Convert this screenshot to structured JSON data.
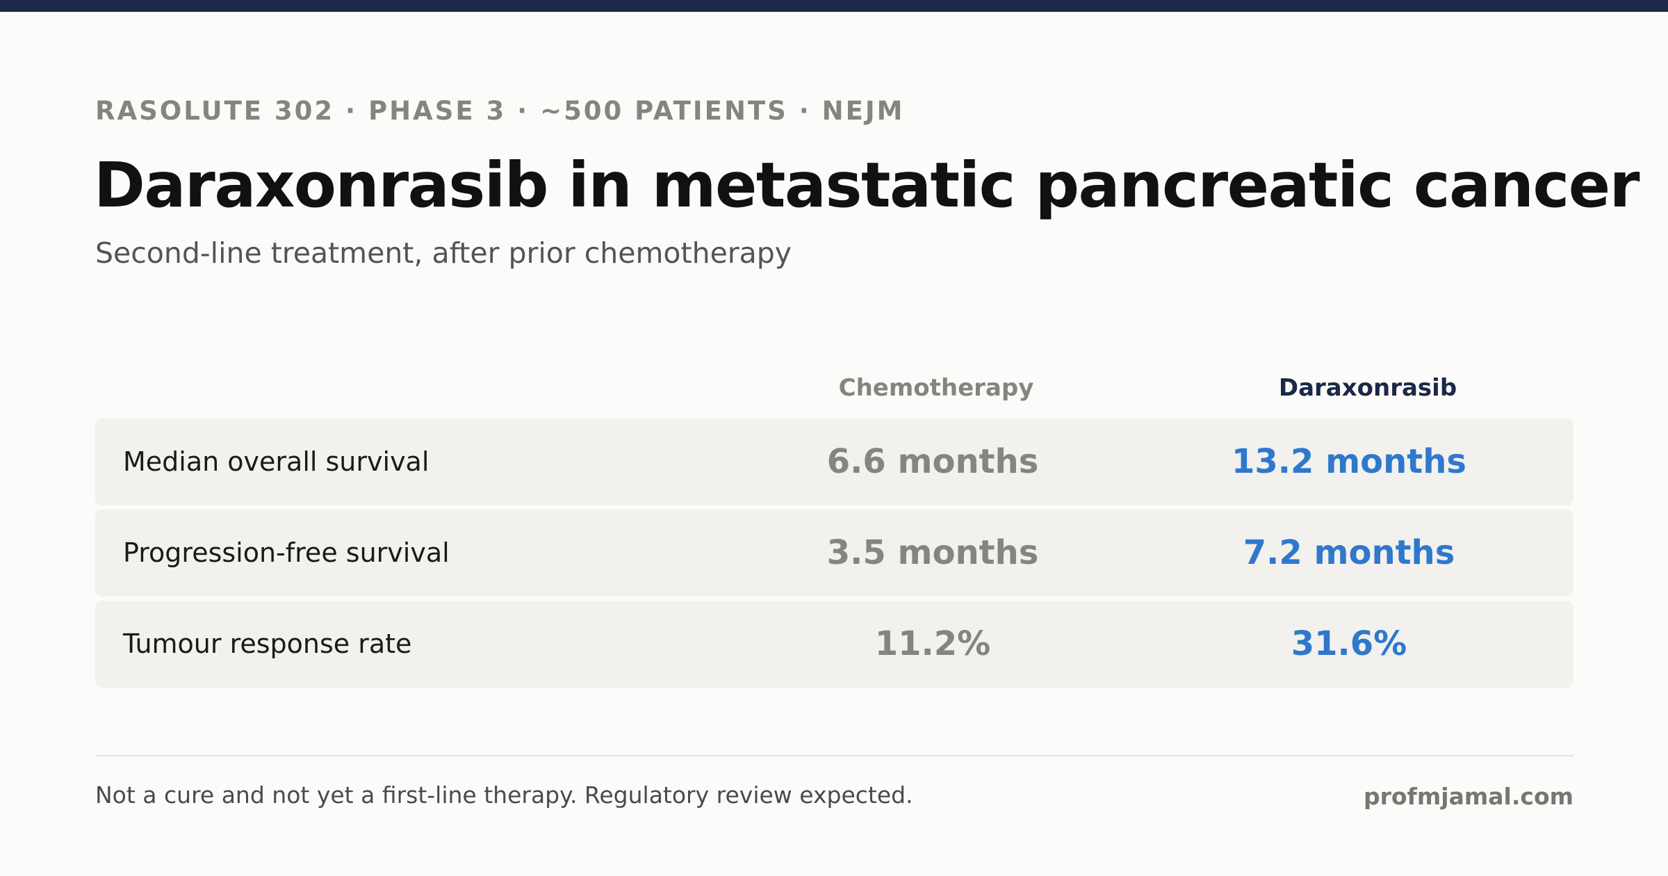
{
  "colors": {
    "top_bar": "#1c2848",
    "background": "#fcfbf9",
    "chemo_value": "#858580",
    "drug_value": "#2f78cc",
    "row_background": "#f2f1ee"
  },
  "header": {
    "eyebrow": "RASOLUTE 302 · PHASE 3 · ~500 PATIENTS · NEJM",
    "title": "Daraxonrasib in metastatic pancreatic cancer",
    "subtitle": "Second-line treatment, after prior chemotherapy"
  },
  "table": {
    "columns": [
      "Chemotherapy",
      "Daraxonrasib"
    ],
    "rows": [
      {
        "label": "Median overall survival",
        "chemo": "6.6 months",
        "drug": "13.2 months"
      },
      {
        "label": "Progression-free survival",
        "chemo": "3.5 months",
        "drug": "7.2 months"
      },
      {
        "label": "Tumour response rate",
        "chemo": "11.2%",
        "drug": "31.6%"
      }
    ]
  },
  "footer": {
    "note": "Not a cure and not yet a first-line therapy. Regulatory review expected.",
    "brand": "profmjamal.com"
  }
}
